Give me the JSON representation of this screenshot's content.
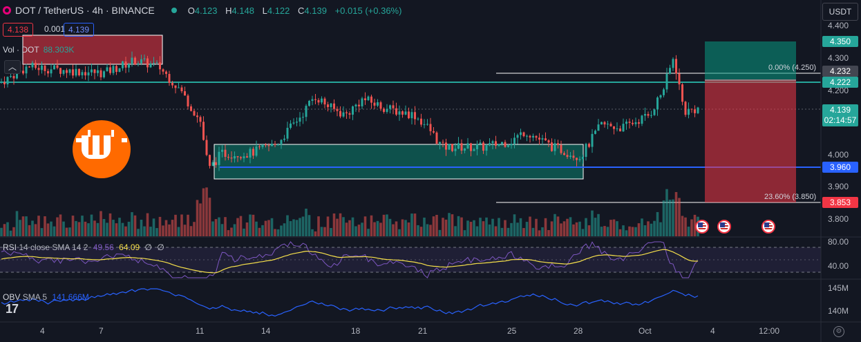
{
  "header": {
    "symbol": "DOT / TetherUS · 4h · BINANCE",
    "open_k": "O",
    "open": "4.123",
    "high_k": "H",
    "high": "4.148",
    "low_k": "L",
    "low": "4.122",
    "close_k": "C",
    "close": "4.139",
    "change": "+0.015 (+0.36%)"
  },
  "trade": {
    "sell": "4.138",
    "spread": "0.001",
    "buy": "4.139"
  },
  "volume": {
    "label": "Vol · DOT",
    "value": "88.303K"
  },
  "collapse_glyph": "︿",
  "currency_button": "USDT",
  "price_axis": {
    "ticks": [
      "4.400",
      "4.300",
      "4.200",
      "4.000",
      "3.900",
      "3.800"
    ],
    "tags": {
      "tp": "4.350",
      "fib0": "4.232",
      "level": "4.222",
      "last": "4.139",
      "countdown": "02:14:57",
      "support": "3.960",
      "stop": "3.853"
    }
  },
  "fib": {
    "top": "0.00% (4.250)",
    "bottom": "23.60% (3.850)"
  },
  "rsi": {
    "label": "RSI",
    "params": "14 close SMA 14 2",
    "value1": "49.56",
    "value2": "64.09",
    "value3": "∅",
    "value4": "∅",
    "axis": [
      "80.00",
      "40.00"
    ]
  },
  "obv": {
    "label": "OBV",
    "params": "SMA 5",
    "value": "141.666M",
    "axis": [
      "145M",
      "140M"
    ]
  },
  "time_axis": [
    "4",
    "7",
    "11",
    "14",
    "18",
    "21",
    "25",
    "28",
    "Oct",
    "4",
    "12:00"
  ],
  "branding": {
    "tv": "17"
  },
  "colors": {
    "bg": "#131722",
    "up": "#26a69a",
    "down": "#ef5350",
    "rsi": "#7e57c2",
    "rsi_ma": "#f7e14b",
    "obv": "#2962ff",
    "accent": "#ff6a00"
  }
}
